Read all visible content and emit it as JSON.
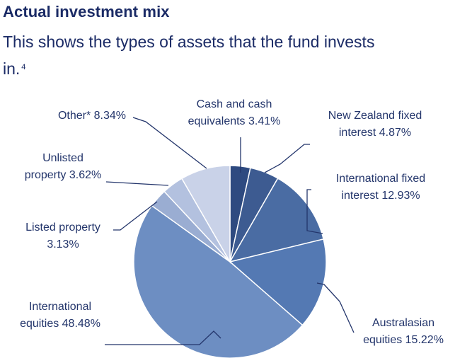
{
  "header": {
    "title": "Actual investment mix",
    "subtitle": "This shows the types of assets that the fund invests in.",
    "footnote_marker": "4"
  },
  "colors": {
    "text": "#23356b",
    "line": "#23356b",
    "slices": [
      "#2e4a80",
      "#3d5b91",
      "#4a6ca3",
      "#5479b3",
      "#6d8ec2",
      "#9aadd2",
      "#b3c1df",
      "#c9d2e8"
    ]
  },
  "chart_data": {
    "type": "pie",
    "title": "",
    "start": "12 o'clock",
    "direction": "clockwise",
    "slices": [
      {
        "label": "Cash and cash\nequivalents 3.41%",
        "category": "Cash and cash equivalents",
        "value": 3.41
      },
      {
        "label": "New Zealand fixed\ninterest 4.87%",
        "category": "New Zealand fixed interest",
        "value": 4.87
      },
      {
        "label": "International fixed\ninterest 12.93%",
        "category": "International fixed interest",
        "value": 12.93
      },
      {
        "label": "Australasian\nequities 15.22%",
        "category": "Australasian equities",
        "value": 15.22
      },
      {
        "label": "International\nequities 48.48%",
        "category": "International equities",
        "value": 48.48
      },
      {
        "label": "Listed property\n3.13%",
        "category": "Listed property",
        "value": 3.13
      },
      {
        "label": "Unlisted\nproperty 3.62%",
        "category": "Unlisted property",
        "value": 3.62
      },
      {
        "label": "Other* 8.34%",
        "category": "Other*",
        "value": 8.34
      }
    ]
  }
}
